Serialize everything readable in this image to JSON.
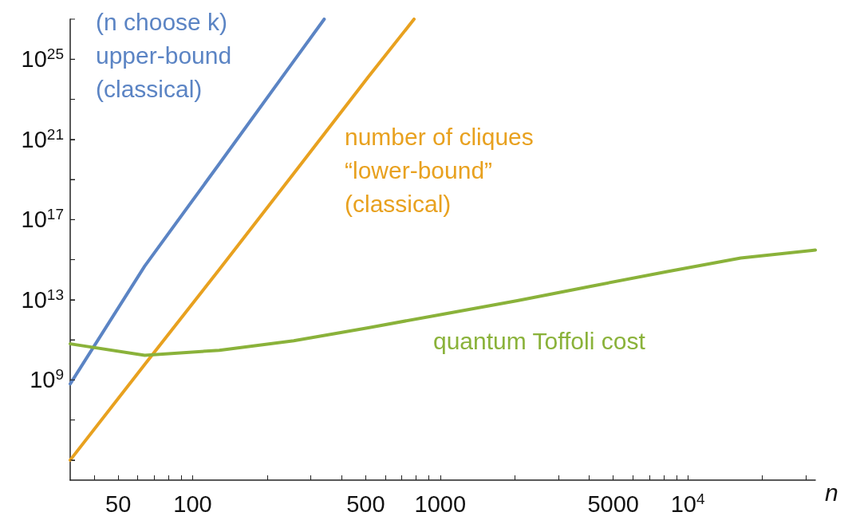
{
  "chart_data": {
    "type": "line",
    "xlabel": "n",
    "log": "xy",
    "grid": false,
    "marker": "none",
    "line_style": "solid",
    "xlim": [
      32,
      32768
    ],
    "ylim": [
      10000,
      1e+27
    ],
    "xticks": [
      {
        "value": 40,
        "label": null
      },
      50,
      {
        "value": 60,
        "label": null
      },
      {
        "value": 70,
        "label": null
      },
      {
        "value": 80,
        "label": null
      },
      {
        "value": 90,
        "label": null
      },
      100,
      {
        "value": 200,
        "label": null
      },
      {
        "value": 300,
        "label": null
      },
      {
        "value": 400,
        "label": null
      },
      500,
      {
        "value": 600,
        "label": null
      },
      {
        "value": 700,
        "label": null
      },
      {
        "value": 800,
        "label": null
      },
      {
        "value": 900,
        "label": null
      },
      1000,
      {
        "value": 2000,
        "label": null
      },
      {
        "value": 3000,
        "label": null
      },
      {
        "value": 4000,
        "label": null
      },
      5000,
      {
        "value": 6000,
        "label": null
      },
      {
        "value": 7000,
        "label": null
      },
      {
        "value": 8000,
        "label": null
      },
      {
        "value": 9000,
        "label": null
      },
      {
        "value": 10000,
        "label": "10$^{4}$"
      },
      {
        "value": 20000,
        "label": null
      },
      {
        "value": 30000,
        "label": null
      }
    ],
    "yticks": [
      {
        "value": 100000,
        "label": null
      },
      {
        "value": 10000000.0,
        "label": null
      },
      {
        "value": 1000000000.0,
        "label": "10$^{9}$"
      },
      {
        "value": 100000000000.0,
        "label": null
      },
      {
        "value": 10000000000000.0,
        "label": "10$^{13}$"
      },
      {
        "value": 1000000000000000.0,
        "label": null
      },
      {
        "value": 1e+17,
        "label": "10$^{17}$"
      },
      {
        "value": 1e+19,
        "label": null
      },
      {
        "value": 1e+21,
        "label": "10$^{21}$"
      },
      {
        "value": 1e+23,
        "label": null
      },
      {
        "value": 1e+25,
        "label": "10$^{25}$"
      },
      {
        "value": 1e+27,
        "label": null
      }
    ],
    "series": [
      {
        "name": "(n choose k)\nupper-bound\n(classical)",
        "color": "#5b84c4",
        "x": [
          32,
          64,
          128,
          256,
          340
        ],
        "values": [
          630000000.0,
          480000000000000.0,
          6e+19,
          8e+24,
          1e+27
        ]
      },
      {
        "name": "number of cliques\n“lower-bound”\n(classical)",
        "color": "#e8a11f",
        "x": [
          32,
          64,
          128,
          256,
          512,
          784
        ],
        "values": [
          100000.0,
          5900000000.0,
          320000000000000.0,
          2e+19,
          1.3e+24,
          1e+27
        ]
      },
      {
        "name": "quantum Toffoli cost",
        "color": "#8ab23a",
        "x": [
          32,
          64,
          128,
          256,
          512,
          1024,
          2048,
          4096,
          8192,
          16384,
          32768
        ],
        "values": [
          63000000000.0,
          17000000000.0,
          30000000000.0,
          90000000000.0,
          400000000000.0,
          1900000000000.0,
          9000000000000.0,
          48000000000000.0,
          250000000000000.0,
          1200000000000000.0,
          3000000000000000.0
        ]
      }
    ]
  }
}
